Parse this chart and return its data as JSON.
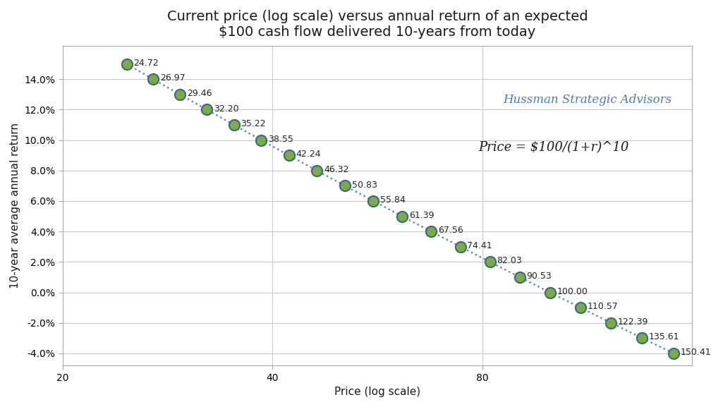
{
  "title_line1": "Current price (log scale) versus annual return of an expected",
  "title_line2": "$100 cash flow delivered 10-years from today",
  "xlabel": "Price (log scale)",
  "ylabel": "10-year average annual return",
  "annotation1": "Hussman Strategic Advisors",
  "annotation2": "Price = $100/(1+r)^10",
  "returns": [
    0.15,
    0.14,
    0.13,
    0.12,
    0.11,
    0.1,
    0.09,
    0.08,
    0.07,
    0.06,
    0.05,
    0.04,
    0.03,
    0.02,
    0.01,
    0.0,
    -0.01,
    -0.02,
    -0.03,
    -0.04
  ],
  "prices": [
    24.72,
    26.97,
    29.46,
    32.2,
    35.22,
    38.55,
    42.24,
    46.32,
    50.83,
    55.84,
    61.39,
    67.56,
    74.41,
    82.03,
    90.53,
    100.0,
    110.57,
    122.39,
    135.61,
    150.41
  ],
  "xlim": [
    20,
    160
  ],
  "ylim": [
    -0.048,
    0.162
  ],
  "xticks": [
    20,
    40,
    80
  ],
  "yticks": [
    -0.04,
    -0.02,
    0.0,
    0.02,
    0.04,
    0.06,
    0.08,
    0.1,
    0.12,
    0.14
  ],
  "marker_face_color": "#7aaa4a",
  "marker_edge_color": "#3a6a7a",
  "line_color": "#5b8db8",
  "annotation1_color": "#4a7ab0",
  "annotation2_color": "#1a1a1a",
  "bg_color": "#ffffff",
  "grid_color": "#c8c8c8",
  "title_fontsize": 14,
  "label_fontsize": 11,
  "tick_fontsize": 10,
  "annotation1_fontsize": 12,
  "annotation2_fontsize": 13,
  "point_label_fontsize": 9
}
